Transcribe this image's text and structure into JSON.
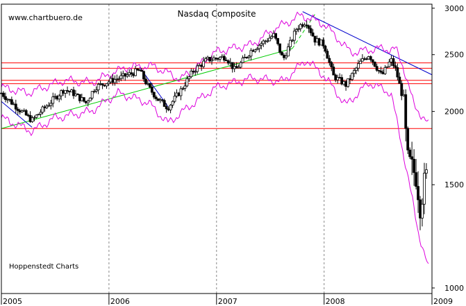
{
  "chart_data": {
    "type": "candlestick",
    "title": "Nasdaq Composite",
    "watermark": "www.chartbuero.de",
    "credit": "Hoppenstedt Charts",
    "y_scale": "log",
    "ylim": [
      1000,
      3050
    ],
    "y_ticks": [
      {
        "value": 1000,
        "label": "1000"
      },
      {
        "value": 1500,
        "label": "1500"
      },
      {
        "value": 2000,
        "label": "2000"
      },
      {
        "value": 2500,
        "label": "2500"
      },
      {
        "value": 3000,
        "label": "3000"
      }
    ],
    "xlim": [
      "2005-01-01",
      "2009-01-01"
    ],
    "x_ticks": [
      {
        "date": "2005-01-01",
        "label": "2005"
      },
      {
        "date": "2006-01-01",
        "label": "2006"
      },
      {
        "date": "2007-01-01",
        "label": "2007"
      },
      {
        "date": "2008-01-01",
        "label": "2008"
      },
      {
        "date": "2009-01-01",
        "label": "2009"
      }
    ],
    "grid": {
      "vertical": "dashed",
      "horizontal": false
    },
    "price_path": [
      [
        "2005-01-01",
        2150
      ],
      [
        "2005-02-01",
        2080
      ],
      [
        "2005-03-01",
        2020
      ],
      [
        "2005-04-15",
        1930
      ],
      [
        "2005-05-15",
        2000
      ],
      [
        "2005-06-15",
        2070
      ],
      [
        "2005-08-01",
        2180
      ],
      [
        "2005-09-01",
        2150
      ],
      [
        "2005-10-15",
        2070
      ],
      [
        "2005-11-15",
        2200
      ],
      [
        "2006-01-01",
        2250
      ],
      [
        "2006-02-15",
        2290
      ],
      [
        "2006-04-15",
        2350
      ],
      [
        "2006-05-15",
        2200
      ],
      [
        "2006-06-15",
        2100
      ],
      [
        "2006-07-20",
        2030
      ],
      [
        "2006-09-01",
        2170
      ],
      [
        "2006-10-15",
        2350
      ],
      [
        "2006-12-01",
        2450
      ],
      [
        "2007-02-01",
        2480
      ],
      [
        "2007-03-05",
        2350
      ],
      [
        "2007-05-01",
        2550
      ],
      [
        "2007-07-15",
        2700
      ],
      [
        "2007-08-15",
        2450
      ],
      [
        "2007-10-01",
        2780
      ],
      [
        "2007-11-01",
        2850
      ],
      [
        "2007-12-01",
        2650
      ],
      [
        "2008-01-01",
        2600
      ],
      [
        "2008-02-01",
        2300
      ],
      [
        "2008-03-15",
        2220
      ],
      [
        "2008-05-01",
        2420
      ],
      [
        "2008-06-01",
        2500
      ],
      [
        "2008-07-15",
        2300
      ],
      [
        "2008-08-15",
        2450
      ],
      [
        "2008-09-01",
        2350
      ],
      [
        "2008-09-25",
        2100
      ],
      [
        "2008-10-10",
        1650
      ],
      [
        "2008-10-25",
        1600
      ],
      [
        "2008-11-10",
        1550
      ],
      [
        "2008-11-21",
        1380
      ],
      [
        "2008-12-05",
        1500
      ],
      [
        "2008-12-15",
        1560
      ]
    ],
    "upper_band": [
      [
        "2005-01-01",
        2200
      ],
      [
        "2005-04-01",
        2150
      ],
      [
        "2005-08-01",
        2260
      ],
      [
        "2005-11-01",
        2240
      ],
      [
        "2006-03-01",
        2380
      ],
      [
        "2006-06-01",
        2390
      ],
      [
        "2006-09-01",
        2270
      ],
      [
        "2007-01-01",
        2530
      ],
      [
        "2007-05-01",
        2600
      ],
      [
        "2007-07-15",
        2760
      ],
      [
        "2007-10-15",
        2920
      ],
      [
        "2008-01-01",
        2820
      ],
      [
        "2008-04-01",
        2520
      ],
      [
        "2008-07-01",
        2560
      ],
      [
        "2008-09-01",
        2550
      ],
      [
        "2008-09-25",
        2390
      ],
      [
        "2008-11-01",
        2050
      ],
      [
        "2008-12-20",
        1900
      ]
    ],
    "lower_band": [
      [
        "2005-01-01",
        1950
      ],
      [
        "2005-04-15",
        1850
      ],
      [
        "2005-07-01",
        1950
      ],
      [
        "2005-11-01",
        2000
      ],
      [
        "2006-02-01",
        2150
      ],
      [
        "2006-05-15",
        2070
      ],
      [
        "2006-07-20",
        1910
      ],
      [
        "2006-10-01",
        2040
      ],
      [
        "2007-01-01",
        2200
      ],
      [
        "2007-05-01",
        2280
      ],
      [
        "2007-08-15",
        2250
      ],
      [
        "2007-11-01",
        2450
      ],
      [
        "2008-01-01",
        2300
      ],
      [
        "2008-03-15",
        2050
      ],
      [
        "2008-06-01",
        2240
      ],
      [
        "2008-08-15",
        2150
      ],
      [
        "2008-10-01",
        1650
      ],
      [
        "2008-11-15",
        1250
      ],
      [
        "2008-12-20",
        1080
      ]
    ],
    "support_lines": [
      {
        "value": 1870,
        "color": "#ff0000"
      },
      {
        "value": 2230,
        "color": "#ff0000"
      },
      {
        "value": 2260,
        "color": "#ff0000"
      },
      {
        "value": 2370,
        "color": "#ff0000"
      },
      {
        "value": 2420,
        "color": "#ff0000"
      }
    ],
    "trend_lines": [
      {
        "from": [
          "2005-01-01",
          1870
        ],
        "to": [
          "2007-09-15",
          2560
        ],
        "color": "#00cc00",
        "style": "solid"
      },
      {
        "from": [
          "2007-09-15",
          2560
        ],
        "to": [
          "2007-12-01",
          2930
        ],
        "color": "#00cc00",
        "style": "dashed"
      },
      {
        "from": [
          "2007-10-20",
          2960
        ],
        "to": [
          "2009-01-01",
          2310
        ],
        "color": "#0000cc",
        "style": "solid"
      },
      {
        "from": [
          "2005-01-01",
          2080
        ],
        "to": [
          "2005-04-15",
          1880
        ],
        "color": "#0000cc",
        "style": "solid"
      },
      {
        "from": [
          "2006-04-15",
          2380
        ],
        "to": [
          "2006-07-20",
          2040
        ],
        "color": "#0000cc",
        "style": "solid"
      }
    ],
    "colors": {
      "price": "#000000",
      "band": "#dd00dd",
      "support": "#ff0000",
      "grid": "#888888"
    }
  }
}
